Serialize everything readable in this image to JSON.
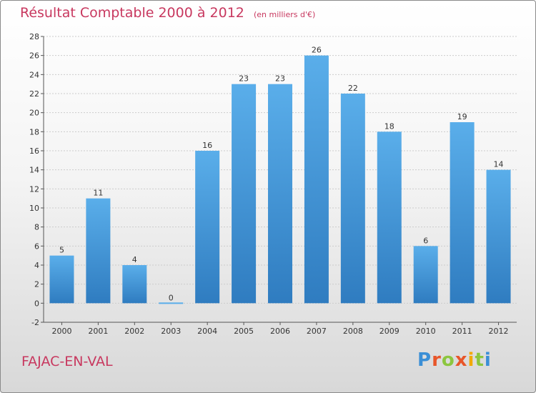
{
  "brand": {
    "name": "Proxiti",
    "letters": [
      "P",
      "r",
      "o",
      "x",
      "i",
      "t",
      "i"
    ]
  },
  "place": "FAJAC-EN-VAL",
  "colors": {
    "title": "#c8385f",
    "bar_top": "#5aaeea",
    "bar_bottom": "#2f7cc0",
    "grid": "#cccccc"
  },
  "chart_data": {
    "type": "bar",
    "title": "Résultat Comptable 2000 à 2012",
    "subtitle": "(en milliers d'€)",
    "xlabel": "",
    "ylabel": "",
    "categories": [
      "2000",
      "2001",
      "2002",
      "2003",
      "2004",
      "2005",
      "2006",
      "2007",
      "2008",
      "2009",
      "2010",
      "2011",
      "2012"
    ],
    "values": [
      5,
      11,
      4,
      0,
      16,
      23,
      23,
      26,
      22,
      18,
      6,
      19,
      14
    ],
    "ylim": [
      -2,
      28
    ],
    "yticks": [
      -2,
      0,
      2,
      4,
      6,
      8,
      10,
      12,
      14,
      16,
      18,
      20,
      22,
      24,
      26,
      28
    ],
    "grid": true,
    "legend": "none"
  }
}
